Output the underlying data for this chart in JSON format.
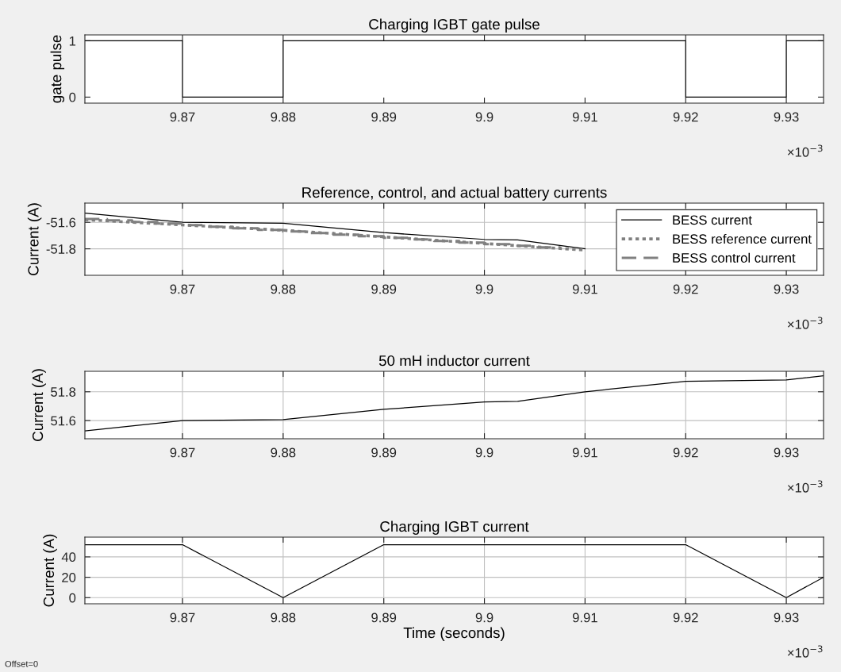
{
  "chart_data": [
    {
      "type": "step",
      "title": "Charging IGBT gate pulse",
      "ylabel": "gate pulse",
      "annotations": [
        "×10$^{−3}$"
      ],
      "grid": false,
      "x": [
        9.8603,
        9.87,
        9.88,
        9.92,
        9.93,
        9.9337
      ],
      "series": [
        {
          "color": "#000000",
          "values": [
            1,
            0,
            1,
            0,
            1,
            1
          ]
        }
      ],
      "xlim": [
        9.8603,
        9.9337
      ],
      "xticks": [
        9.87,
        9.88,
        9.89,
        9.9,
        9.91,
        9.92,
        9.93
      ],
      "ylim": [
        -0.107,
        1.104
      ],
      "yticks": [
        0,
        1
      ]
    },
    {
      "type": "line",
      "title": "Reference, control, and actual battery currents",
      "ylabel": "Current (A)",
      "annotations": [
        "×10$^{−3}$"
      ],
      "grid": true,
      "legend": "top right",
      "series": [
        {
          "name": "BESS current",
          "color": "#000000",
          "line_style": "solid",
          "x": [
            9.8603,
            9.87,
            9.88,
            9.89,
            9.9,
            9.9033,
            9.91
          ],
          "values": [
            -51.53,
            -51.6,
            -51.607,
            -51.678,
            -51.729,
            -51.733,
            -51.8
          ]
        },
        {
          "name": "BESS reference current",
          "color": "#808080",
          "line_style": "dotted",
          "x": [
            9.8603,
            9.87,
            9.88,
            9.89,
            9.9,
            9.91
          ],
          "values": [
            -51.58,
            -51.62,
            -51.66,
            -51.71,
            -51.76,
            -51.81
          ]
        },
        {
          "name": "BESS control current",
          "type": "step",
          "color": "#808080",
          "line_style": "dashed",
          "x": [
            9.8603,
            9.8625,
            9.865,
            9.8675,
            9.87,
            9.8725,
            9.875,
            9.8775,
            9.88,
            9.8825,
            9.885,
            9.8875,
            9.89,
            9.8925,
            9.895,
            9.8975,
            9.9,
            9.9025,
            9.905,
            9.9075
          ],
          "values": [
            -51.575,
            -51.585,
            -51.597,
            -51.609,
            -51.621,
            -51.633,
            -51.645,
            -51.657,
            -51.669,
            -51.681,
            -51.693,
            -51.705,
            -51.717,
            -51.729,
            -51.741,
            -51.753,
            -51.765,
            -51.777,
            -51.789,
            -51.801
          ]
        }
      ],
      "xlim": [
        9.8603,
        9.9337
      ],
      "xticks": [
        9.87,
        9.88,
        9.89,
        9.9,
        9.91,
        9.92,
        9.93
      ],
      "ylim": [
        -52.0,
        -51.455
      ],
      "yticks": [
        -51.8,
        -51.6
      ]
    },
    {
      "type": "line",
      "title": "50 mH inductor current",
      "ylabel": "Current (A)",
      "annotations": [
        "×10$^{−3}$"
      ],
      "grid": true,
      "x": [
        9.8603,
        9.87,
        9.88,
        9.89,
        9.9,
        9.9033,
        9.91,
        9.92,
        9.93,
        9.9337
      ],
      "series": [
        {
          "color": "#000000",
          "values": [
            51.529,
            51.6,
            51.607,
            51.678,
            51.729,
            51.733,
            51.8,
            51.873,
            51.882,
            51.911
          ]
        }
      ],
      "xlim": [
        9.8603,
        9.9337
      ],
      "xticks": [
        9.87,
        9.88,
        9.89,
        9.9,
        9.91,
        9.92,
        9.93
      ],
      "ylim": [
        51.474,
        51.942
      ],
      "yticks": [
        51.6,
        51.8
      ]
    },
    {
      "type": "line",
      "title": "Charging IGBT current",
      "xlabel": "Time (seconds)",
      "ylabel": "Current (A)",
      "annotations": [
        "×10$^{−3}$",
        "Offset=0"
      ],
      "grid": true,
      "x": [
        9.8603,
        9.87,
        9.88,
        9.89,
        9.92,
        9.93,
        9.9337
      ],
      "series": [
        {
          "color": "#000000",
          "values": [
            52,
            52,
            0,
            52,
            52,
            0,
            20
          ]
        }
      ],
      "xlim": [
        9.8603,
        9.9337
      ],
      "xticks": [
        9.87,
        9.88,
        9.89,
        9.9,
        9.91,
        9.92,
        9.93
      ],
      "ylim": [
        -6,
        59.4
      ],
      "yticks": [
        0,
        20,
        40
      ]
    }
  ]
}
